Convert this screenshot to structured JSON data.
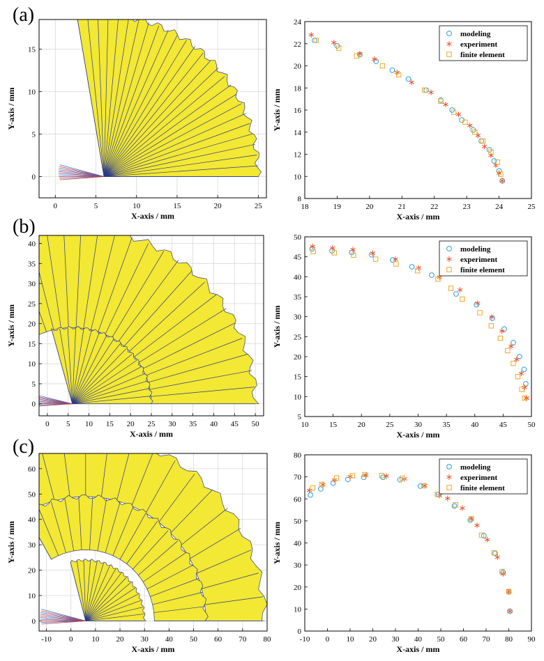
{
  "panels": [
    {
      "label": "(a)"
    },
    {
      "label": "(b)"
    },
    {
      "label": "(c)"
    }
  ],
  "colors": {
    "fill": "#f3e833",
    "edge": "#2a3a8a",
    "modeling": "#2e9fd8",
    "experiment": "#e8502a",
    "finite_element": "#f0a623",
    "grid": "#d8d8d8",
    "ray_red": "#d6342a",
    "ray_blue": "#2e6fd8"
  },
  "chart_data": [
    {
      "type": "diagram",
      "panel": "(a)",
      "xlabel": "X-axis / mm",
      "ylabel": "Y-axis / mm",
      "xlim": [
        -2,
        26
      ],
      "ylim": [
        -2.5,
        18.5
      ],
      "xticks": [
        0,
        5,
        10,
        15,
        20,
        25
      ],
      "yticks": [
        0,
        5,
        10,
        15
      ],
      "grid": true,
      "arc": {
        "cx": 6,
        "cy": 0,
        "inner_r": 0,
        "outer_r": 19,
        "start_deg": 0,
        "end_deg": 100,
        "count": 26
      }
    },
    {
      "type": "scatter",
      "panel": "(a)",
      "xlabel": "X-axis / mm",
      "ylabel": "Y-axis / mm",
      "xlim": [
        18,
        25
      ],
      "ylim": [
        8,
        24
      ],
      "xticks": [
        18,
        19,
        20,
        21,
        22,
        23,
        24,
        25
      ],
      "yticks": [
        8,
        10,
        12,
        14,
        16,
        18,
        20,
        22,
        24
      ],
      "grid": false,
      "legend_position": "top-right",
      "series": [
        {
          "name": "modeling",
          "marker": "circle",
          "x": [
            18.3,
            19.0,
            19.7,
            20.2,
            20.7,
            21.2,
            21.75,
            22.2,
            22.55,
            22.85,
            23.2,
            23.45,
            23.7,
            23.85,
            24.0,
            24.1
          ],
          "y": [
            22.3,
            21.8,
            21.0,
            20.4,
            19.6,
            18.8,
            17.8,
            16.9,
            16.0,
            15.1,
            14.2,
            13.2,
            12.4,
            11.4,
            10.5,
            9.6
          ]
        },
        {
          "name": "experiment",
          "marker": "asterisk",
          "x": [
            18.2,
            18.9,
            19.7,
            20.15,
            20.85,
            21.3,
            21.9,
            22.35,
            22.75,
            23.1,
            23.35,
            23.55,
            23.75,
            23.9,
            24.0,
            24.1
          ],
          "y": [
            22.8,
            22.1,
            21.1,
            20.6,
            19.4,
            18.5,
            17.6,
            16.5,
            15.6,
            14.6,
            13.7,
            12.7,
            11.9,
            11.0,
            10.3,
            9.6
          ]
        },
        {
          "name": "finite element",
          "marker": "square",
          "x": [
            18.35,
            19.05,
            19.6,
            20.4,
            20.9,
            21.7,
            22.2,
            22.6,
            22.95,
            23.25,
            23.5,
            23.75,
            23.95,
            24.05
          ],
          "y": [
            22.3,
            21.6,
            20.9,
            20.0,
            19.2,
            17.8,
            16.8,
            15.8,
            14.9,
            14.0,
            13.2,
            12.2,
            11.3,
            10.2
          ]
        }
      ]
    },
    {
      "type": "diagram",
      "panel": "(b)",
      "xlabel": "X-axis / mm",
      "ylabel": "Y-axis / mm",
      "xlim": [
        -2,
        52
      ],
      "ylim": [
        -3,
        42
      ],
      "xticks": [
        0,
        5,
        10,
        15,
        20,
        25,
        30,
        35,
        40,
        45,
        50
      ],
      "yticks": [
        0,
        5,
        10,
        15,
        20,
        25,
        30,
        35,
        40
      ],
      "grid": true,
      "arc": {
        "cx": 6,
        "cy": 0,
        "inner_r": 19,
        "outer_r": 44,
        "start_deg": 0,
        "end_deg": 120,
        "count": 22
      },
      "inner_arc": {
        "cx": 6,
        "cy": 0,
        "inner_r": 0,
        "outer_r": 19,
        "start_deg": 0,
        "end_deg": 105,
        "count": 18
      }
    },
    {
      "type": "scatter",
      "panel": "(b)",
      "xlabel": "X-axis / mm",
      "ylabel": "Y-axis / mm",
      "xlim": [
        10,
        50
      ],
      "ylim": [
        5,
        50
      ],
      "xticks": [
        10,
        15,
        20,
        25,
        30,
        35,
        40,
        45,
        50
      ],
      "yticks": [
        5,
        10,
        15,
        20,
        25,
        30,
        35,
        40,
        45,
        50
      ],
      "grid": false,
      "legend_position": "top-right",
      "series": [
        {
          "name": "modeling",
          "marker": "circle",
          "x": [
            11.3,
            14.8,
            18.3,
            21.8,
            25.5,
            28.9,
            32.4,
            36.7,
            40.3,
            43.1,
            45.2,
            46.8,
            47.9,
            48.7,
            49.0
          ],
          "y": [
            47.0,
            46.5,
            46.1,
            45.5,
            44.2,
            42.5,
            40.4,
            35.7,
            33.0,
            29.6,
            26.9,
            23.5,
            20.0,
            16.8,
            13.2
          ]
        },
        {
          "name": "experiment",
          "marker": "asterisk",
          "x": [
            11.4,
            14.9,
            18.5,
            22.0,
            26.0,
            30.1,
            33.8,
            37.4,
            40.5,
            43.0,
            44.8,
            46.4,
            47.4,
            48.2,
            48.8,
            49.1,
            49.2
          ],
          "y": [
            47.6,
            47.2,
            46.8,
            45.9,
            44.4,
            42.2,
            39.9,
            36.7,
            33.4,
            29.9,
            26.4,
            22.6,
            19.3,
            15.8,
            12.3,
            9.6,
            9.6
          ]
        },
        {
          "name": "finite element",
          "marker": "square",
          "x": [
            11.5,
            15.2,
            18.6,
            22.5,
            26.1,
            29.9,
            33.5,
            35.8,
            37.8,
            40.9,
            42.9,
            44.5,
            45.8,
            46.8,
            47.6,
            48.3,
            48.8
          ],
          "y": [
            46.3,
            46.0,
            45.4,
            44.4,
            43.2,
            41.5,
            39.4,
            37.1,
            34.4,
            31.0,
            27.7,
            24.6,
            21.5,
            18.3,
            15.0,
            11.8,
            9.6
          ]
        }
      ]
    },
    {
      "type": "diagram",
      "panel": "(c)",
      "xlabel": "X-axis / mm",
      "ylabel": "Y-axis / mm",
      "xlim": [
        -13,
        80
      ],
      "ylim": [
        -4,
        66
      ],
      "xticks": [
        -10,
        0,
        10,
        20,
        30,
        40,
        50,
        60,
        70,
        80
      ],
      "yticks": [
        0,
        10,
        20,
        30,
        40,
        50,
        60
      ],
      "grid": true,
      "arc": {
        "cx": 6,
        "cy": 0,
        "inner_r": 49,
        "outer_r": 73,
        "start_deg": 0,
        "end_deg": 150,
        "count": 20
      },
      "mid_arc": {
        "cx": 6,
        "cy": 0,
        "inner_r": 28,
        "outer_r": 49,
        "start_deg": 0,
        "end_deg": 120,
        "count": 18
      },
      "inner_arc": {
        "cx": 6,
        "cy": 0,
        "inner_r": 0,
        "outer_r": 24,
        "start_deg": 0,
        "end_deg": 105,
        "count": 16
      }
    },
    {
      "type": "scatter",
      "panel": "(c)",
      "xlabel": "X-axis / mm",
      "ylabel": "Y-axis / mm",
      "xlim": [
        -10,
        90
      ],
      "ylim": [
        0,
        80
      ],
      "xticks": [
        -10,
        0,
        10,
        20,
        30,
        40,
        50,
        60,
        70,
        80,
        90
      ],
      "yticks": [
        0,
        10,
        20,
        30,
        40,
        50,
        60,
        70,
        80
      ],
      "grid": false,
      "legend_position": "top-right",
      "series": [
        {
          "name": "modeling",
          "marker": "circle",
          "x": [
            -7.5,
            -3.0,
            2.5,
            9.0,
            16.0,
            24.5,
            32.0,
            41.0,
            49.0,
            56.0,
            63.0,
            69.0,
            74.0,
            77.5,
            80.0,
            80.5
          ],
          "y": [
            61.8,
            64.5,
            67.2,
            68.8,
            69.8,
            69.8,
            68.7,
            65.8,
            62.0,
            56.8,
            50.4,
            43.3,
            35.3,
            26.6,
            17.8,
            9.0
          ]
        },
        {
          "name": "experiment",
          "marker": "asterisk",
          "x": [
            -8.0,
            -2.0,
            3.0,
            10.0,
            17.0,
            26.0,
            34.0,
            43.0,
            49.5,
            53.0,
            59.5,
            63.5,
            66.0,
            70.5,
            75.0,
            77.5,
            80.0,
            80.5
          ],
          "y": [
            63.8,
            66.5,
            68.6,
            70.2,
            70.8,
            70.4,
            69.1,
            66.0,
            61.5,
            60.2,
            55.8,
            51.0,
            48.0,
            41.5,
            33.5,
            26.0,
            17.8,
            9.0
          ]
        },
        {
          "name": "finite element",
          "marker": "square",
          "x": [
            -6.5,
            -2.5,
            4.0,
            11.0,
            16.5,
            24.0,
            33.0,
            42.5,
            48.5,
            56.5,
            63.5,
            68.0,
            73.5,
            77.0,
            80.0
          ],
          "y": [
            65.0,
            66.6,
            69.5,
            70.5,
            71.0,
            70.6,
            69.4,
            66.0,
            62.0,
            57.3,
            51.0,
            43.5,
            35.5,
            27.0,
            18.0
          ]
        }
      ]
    }
  ]
}
